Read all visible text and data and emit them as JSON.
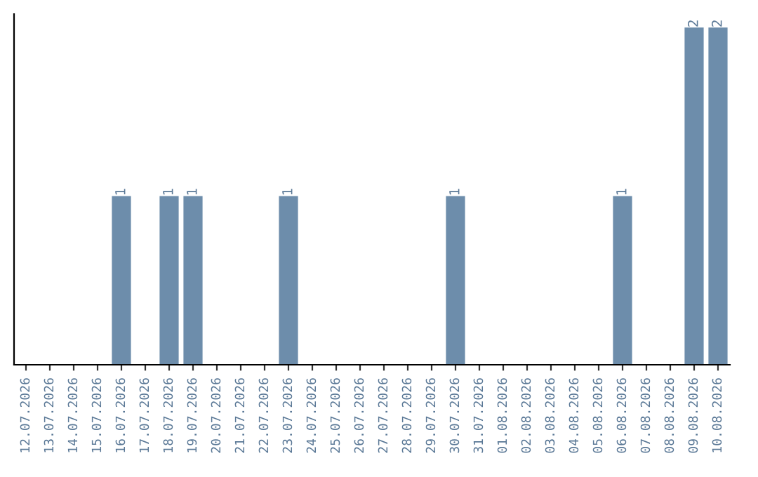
{
  "chart_data": {
    "type": "bar",
    "categories": [
      "12.07.2026",
      "13.07.2026",
      "14.07.2026",
      "15.07.2026",
      "16.07.2026",
      "17.07.2026",
      "18.07.2026",
      "19.07.2026",
      "20.07.2026",
      "21.07.2026",
      "22.07.2026",
      "23.07.2026",
      "24.07.2026",
      "25.07.2026",
      "26.07.2026",
      "27.07.2026",
      "28.07.2026",
      "29.07.2026",
      "30.07.2026",
      "31.07.2026",
      "01.08.2026",
      "02.08.2026",
      "03.08.2026",
      "04.08.2026",
      "05.08.2026",
      "06.08.2026",
      "07.08.2026",
      "08.08.2026",
      "09.08.2026",
      "10.08.2026"
    ],
    "values": [
      0,
      0,
      0,
      0,
      1,
      0,
      1,
      1,
      0,
      0,
      0,
      1,
      0,
      0,
      0,
      0,
      0,
      0,
      1,
      0,
      0,
      0,
      0,
      0,
      0,
      1,
      0,
      0,
      2,
      2
    ],
    "color": "#6d8dab",
    "value_labels": [
      null,
      null,
      null,
      null,
      "1",
      null,
      "1",
      "1",
      null,
      null,
      null,
      "1",
      null,
      null,
      null,
      null,
      null,
      null,
      "1",
      null,
      null,
      null,
      null,
      null,
      null,
      "1",
      null,
      null,
      "2",
      "2"
    ],
    "tick_labels": "x",
    "grid": false
  }
}
